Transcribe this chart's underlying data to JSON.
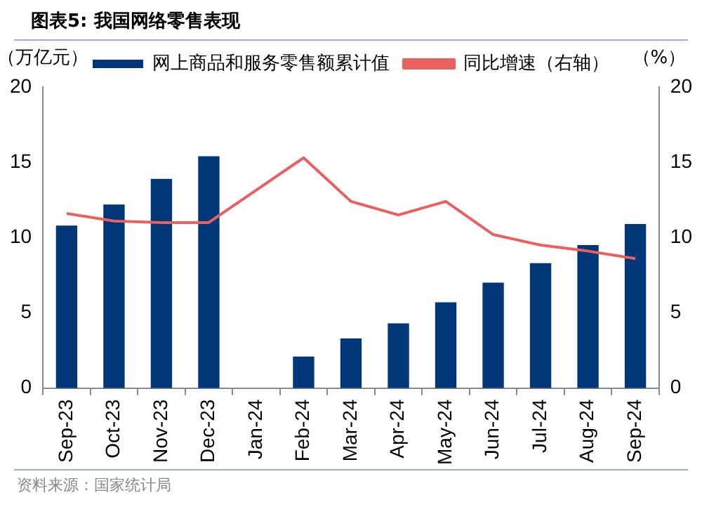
{
  "chart_data": {
    "type": "bar",
    "title": "图表5:  我国网络零售表现",
    "ylabel": "（万亿元）",
    "y2label": "（%）",
    "categories": [
      "Sep-23",
      "Oct-23",
      "Nov-23",
      "Dec-23",
      "Jan-24",
      "Feb-24",
      "Mar-24",
      "Apr-24",
      "May-24",
      "Jun-24",
      "Jul-24",
      "Aug-24",
      "Sep-24"
    ],
    "series": [
      {
        "name": "网上商品和服务零售额累计值",
        "color": "#003778",
        "values": [
          10.8,
          12.2,
          13.9,
          15.4,
          null,
          2.1,
          3.3,
          4.3,
          5.7,
          7.0,
          8.3,
          9.5,
          10.9
        ]
      },
      {
        "name": "同比增速（右轴）",
        "type": "line",
        "axis": "y2",
        "color": "#e8605f",
        "values": [
          11.6,
          11.1,
          11.0,
          11.0,
          null,
          15.3,
          12.4,
          11.5,
          12.4,
          10.2,
          9.5,
          9.1,
          8.6
        ]
      }
    ],
    "ylim": [
      0,
      20
    ],
    "yticks": [
      0,
      5,
      10,
      15,
      20
    ],
    "y2lim": [
      0,
      20
    ],
    "y2ticks": [
      0,
      5,
      10,
      15,
      20
    ],
    "legend": "top",
    "grid": false,
    "marker": "none",
    "annotations": [
      "资料来源：国家统计局"
    ]
  }
}
